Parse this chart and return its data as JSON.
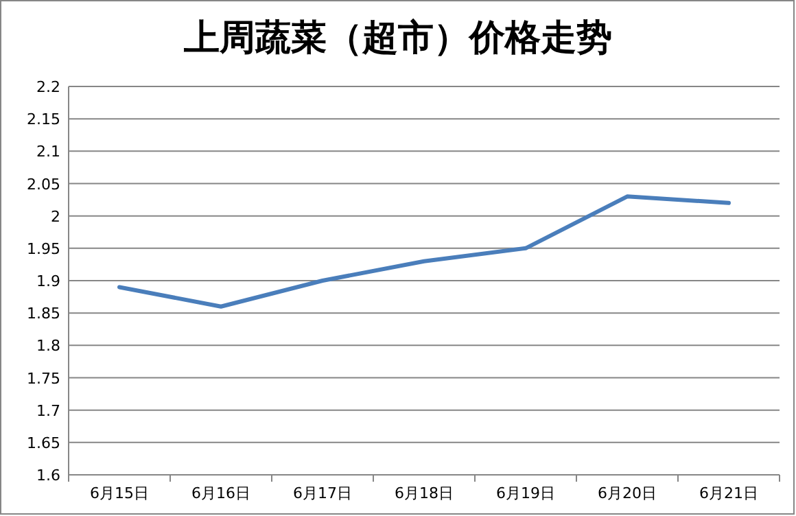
{
  "chart_data": {
    "type": "line",
    "title": "上周蔬菜（超市）价格走势",
    "categories": [
      "6月15日",
      "6月16日",
      "6月17日",
      "6月18日",
      "6月19日",
      "6月20日",
      "6月21日"
    ],
    "series": [
      {
        "color": "#4a7ebb",
        "values": [
          1.89,
          1.86,
          1.9,
          1.93,
          1.95,
          2.03,
          2.02
        ]
      }
    ],
    "ylim": [
      1.6,
      2.2
    ],
    "yticks": [
      1.6,
      1.65,
      1.7,
      1.75,
      1.8,
      1.85,
      1.9,
      1.95,
      2,
      2.05,
      2.1,
      2.15,
      2.2
    ],
    "grid": "y"
  }
}
